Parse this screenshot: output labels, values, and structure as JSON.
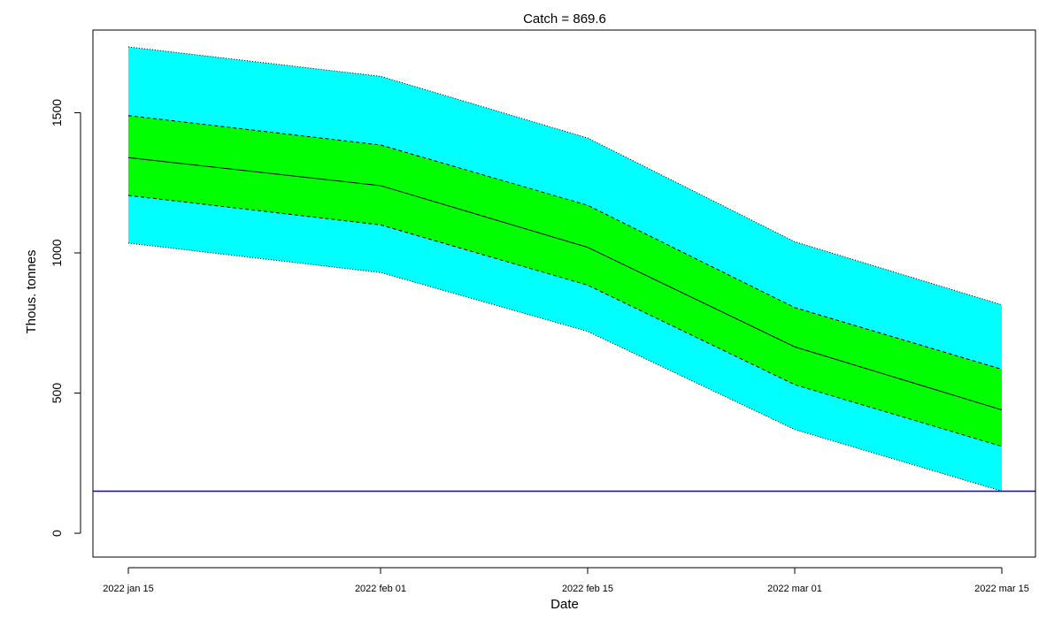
{
  "chart_data": {
    "type": "area",
    "title": "Catch = 869.6",
    "xlabel": "Date",
    "ylabel": "Thous. tonnes",
    "x": [
      "2022 jan 15",
      "2022 feb 01",
      "2022 feb 15",
      "2022 mar 01",
      "2022 mar 15"
    ],
    "x_tick_labels": [
      "2022 jan 15",
      "2022 feb 01",
      "2022 feb 15",
      "2022 mar 01",
      "2022 mar 15"
    ],
    "y_ticks": [
      0,
      500,
      1000,
      1500
    ],
    "y_tick_labels": [
      "0",
      "500",
      "1000",
      "1500"
    ],
    "ylim": [
      -85,
      1795
    ],
    "grid": false,
    "bands": [
      {
        "fill": "#00FFFF",
        "line_style": "dotted",
        "upper": [
          1735,
          1630,
          1410,
          1040,
          815
        ],
        "lower": [
          1035,
          930,
          720,
          370,
          150
        ]
      },
      {
        "fill": "#00FF00",
        "line_style": "dashed",
        "upper": [
          1490,
          1385,
          1170,
          805,
          585
        ],
        "lower": [
          1205,
          1100,
          885,
          530,
          310
        ]
      }
    ],
    "series": [
      {
        "values": [
          1340,
          1240,
          1020,
          665,
          440
        ],
        "color": "#000000",
        "line_style": "solid"
      }
    ],
    "reference_lines": [
      {
        "y": 150,
        "color": "#0000FF"
      }
    ]
  }
}
